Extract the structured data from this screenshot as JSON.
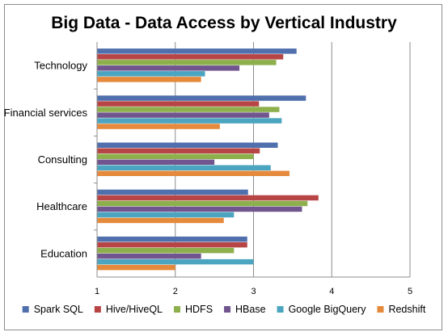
{
  "chart_data": {
    "type": "bar",
    "orientation": "horizontal",
    "title": "Big Data - Data Access by Vertical Industry",
    "xlabel": "",
    "ylabel": "",
    "categories": [
      "Technology",
      "Financial services",
      "Consulting",
      "Healthcare",
      "Education"
    ],
    "xlim": [
      1,
      5
    ],
    "xticks": [
      1,
      2,
      3,
      4,
      5
    ],
    "grid": "vertical",
    "legend": "bottom",
    "series": [
      {
        "name": "Spark SQL",
        "color": "#4F6FAD",
        "values": [
          3.55,
          3.67,
          3.31,
          2.93,
          2.92
        ]
      },
      {
        "name": "Hive/HiveQL",
        "color": "#B84545",
        "values": [
          3.38,
          3.07,
          3.08,
          3.83,
          2.92
        ]
      },
      {
        "name": "HDFS",
        "color": "#8DAF4C",
        "values": [
          3.29,
          3.33,
          3.0,
          3.69,
          2.75
        ]
      },
      {
        "name": "HBase",
        "color": "#71558F",
        "values": [
          2.82,
          3.2,
          2.5,
          3.62,
          2.33
        ]
      },
      {
        "name": "Google BigQuery",
        "color": "#4BA5C0",
        "values": [
          2.38,
          3.36,
          3.22,
          2.75,
          3.0
        ]
      },
      {
        "name": "Redshift",
        "color": "#E58A3C",
        "values": [
          2.33,
          2.57,
          3.46,
          2.62,
          2.0
        ]
      }
    ]
  }
}
